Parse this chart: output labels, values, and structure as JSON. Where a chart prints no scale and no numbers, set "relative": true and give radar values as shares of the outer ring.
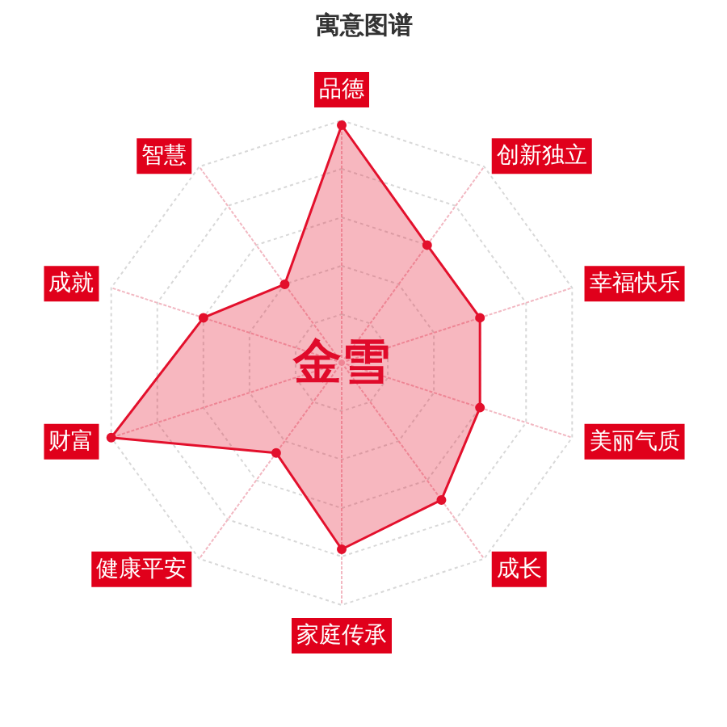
{
  "chart_data": {
    "type": "radar",
    "title": "寓意图谱",
    "categories": [
      "品德",
      "创新独立",
      "幸福快乐",
      "美丽气质",
      "成长",
      "家庭传承",
      "健康平安",
      "财富",
      "成就",
      "智慧"
    ],
    "relative": true,
    "series": [
      {
        "color": "#e3102c",
        "values": [
          0.98,
          0.6,
          0.6,
          0.6,
          0.7,
          0.77,
          0.46,
          1.0,
          0.6,
          0.4
        ]
      }
    ],
    "annotations": [
      "金雪"
    ],
    "grid": true,
    "marker": "circle"
  }
}
